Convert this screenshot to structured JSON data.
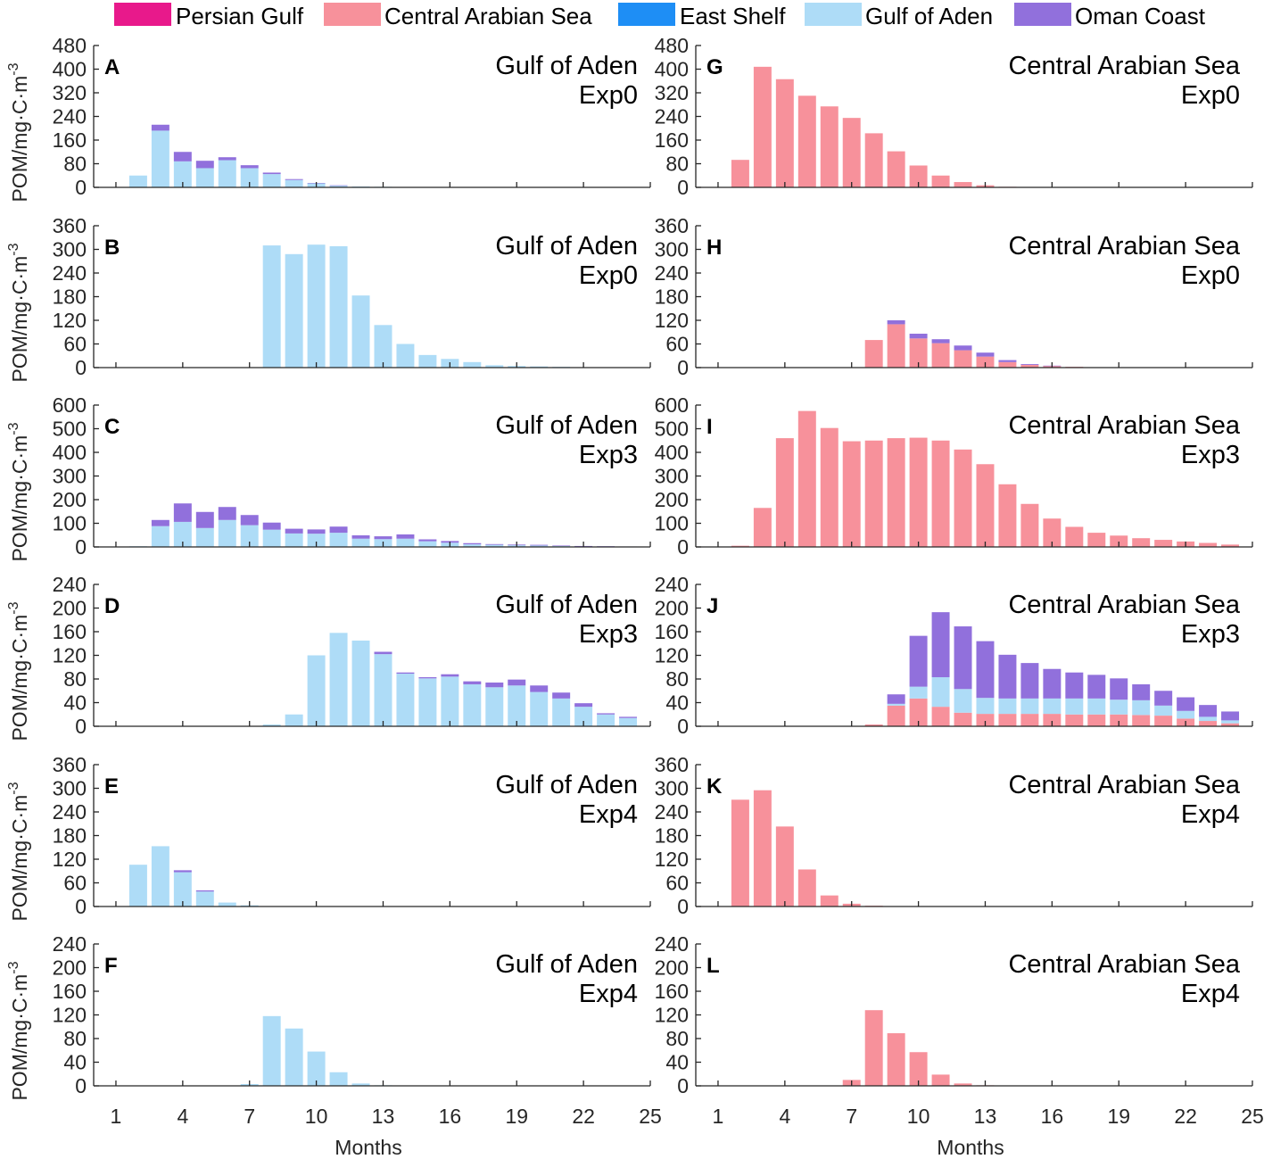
{
  "chart_data": {
    "type": "bar",
    "stacked": true,
    "legend": [
      {
        "name": "Persian Gulf",
        "color": "#e8198b"
      },
      {
        "name": "Central Arabian Sea",
        "color": "#f7919b"
      },
      {
        "name": "East Shelf",
        "color": "#1e8ef5"
      },
      {
        "name": "Gulf of Aden",
        "color": "#aedcf7"
      },
      {
        "name": "Oman Coast",
        "color": "#9170dc"
      }
    ],
    "xlabel": "Months",
    "ylabel_main": "POM/mg·C·m",
    "ylabel_sup": "-3",
    "x_ticks": [
      1,
      4,
      7,
      10,
      13,
      16,
      19,
      22,
      25
    ],
    "xlim": [
      0,
      25
    ],
    "panels": [
      {
        "letter": "A",
        "title1": "Gulf of Aden",
        "title2": "Exp0",
        "ylim": [
          0,
          480
        ],
        "yticks": [
          0,
          80,
          160,
          240,
          320,
          400,
          480
        ],
        "months": [
          2,
          3,
          4,
          5,
          6,
          7,
          8,
          9,
          10,
          11,
          12,
          13,
          14,
          15
        ],
        "series": [
          {
            "name": "Gulf of Aden",
            "values": [
              40,
              192,
              88,
              65,
              92,
              65,
              45,
              25,
              14,
              6,
              3,
              2,
              1,
              1
            ]
          },
          {
            "name": "Oman Coast",
            "values": [
              0,
              20,
              32,
              25,
              10,
              10,
              5,
              3,
              1,
              1,
              0,
              0,
              0,
              0
            ]
          }
        ]
      },
      {
        "letter": "B",
        "title1": "Gulf of Aden",
        "title2": "Exp0",
        "ylim": [
          0,
          360
        ],
        "yticks": [
          0,
          60,
          120,
          180,
          240,
          300,
          360
        ],
        "months": [
          8,
          9,
          10,
          11,
          12,
          13,
          14,
          15,
          16,
          17,
          18,
          19,
          20,
          21,
          22,
          23,
          24
        ],
        "series": [
          {
            "name": "Gulf of Aden",
            "values": [
              310,
              288,
              312,
              308,
              183,
              108,
              60,
              32,
              22,
              14,
              6,
              4,
              3,
              2,
              1,
              1,
              1
            ]
          }
        ]
      },
      {
        "letter": "C",
        "title1": "Gulf of Aden",
        "title2": "Exp3",
        "ylim": [
          0,
          600
        ],
        "yticks": [
          0,
          100,
          200,
          300,
          400,
          500,
          600
        ],
        "months": [
          2,
          3,
          4,
          5,
          6,
          7,
          8,
          9,
          10,
          11,
          12,
          13,
          14,
          15,
          16,
          17,
          18,
          19,
          20,
          21,
          22,
          23,
          24
        ],
        "series": [
          {
            "name": "Gulf of Aden",
            "values": [
              3,
              88,
              106,
              80,
              114,
              92,
              73,
              57,
              56,
              60,
              35,
              33,
              35,
              24,
              18,
              11,
              9,
              7,
              6,
              4,
              3,
              2,
              1
            ]
          },
          {
            "name": "Oman Coast",
            "values": [
              0,
              26,
              78,
              68,
              55,
              43,
              30,
              20,
              18,
              26,
              14,
              12,
              18,
              8,
              7,
              5,
              3,
              3,
              3,
              2,
              1,
              1,
              1
            ]
          }
        ]
      },
      {
        "letter": "D",
        "title1": "Gulf of Aden",
        "title2": "Exp3",
        "ylim": [
          0,
          240
        ],
        "yticks": [
          0,
          40,
          80,
          120,
          160,
          200,
          240
        ],
        "months": [
          8,
          9,
          10,
          11,
          12,
          13,
          14,
          15,
          16,
          17,
          18,
          19,
          20,
          21,
          22,
          23,
          24
        ],
        "series": [
          {
            "name": "Gulf of Aden",
            "values": [
              3,
              20,
              120,
              158,
              145,
              122,
              89,
              81,
              84,
              71,
              66,
              69,
              58,
              47,
              33,
              20,
              14
            ]
          },
          {
            "name": "Oman Coast",
            "values": [
              0,
              0,
              0,
              0,
              0,
              4,
              2,
              2,
              4,
              5,
              8,
              10,
              11,
              10,
              6,
              2,
              2
            ]
          }
        ]
      },
      {
        "letter": "E",
        "title1": "Gulf of Aden",
        "title2": "Exp4",
        "ylim": [
          0,
          360
        ],
        "yticks": [
          0,
          60,
          120,
          180,
          240,
          300,
          360
        ],
        "months": [
          2,
          3,
          4,
          5,
          6,
          7,
          8
        ],
        "series": [
          {
            "name": "Gulf of Aden",
            "values": [
              106,
              153,
              87,
              38,
              10,
              3,
              1
            ]
          },
          {
            "name": "Oman Coast",
            "values": [
              0,
              0,
              5,
              3,
              0,
              0,
              0
            ]
          }
        ]
      },
      {
        "letter": "F",
        "title1": "Gulf of Aden",
        "title2": "Exp4",
        "ylim": [
          0,
          240
        ],
        "yticks": [
          0,
          40,
          80,
          120,
          160,
          200,
          240
        ],
        "months": [
          7,
          8,
          9,
          10,
          11,
          12,
          13
        ],
        "series": [
          {
            "name": "Gulf of Aden",
            "values": [
              3,
              118,
              97,
              58,
              23,
              4,
              1
            ]
          }
        ]
      },
      {
        "letter": "G",
        "title1": "Central Arabian Sea",
        "title2": "Exp0",
        "ylim": [
          0,
          480
        ],
        "yticks": [
          0,
          80,
          160,
          240,
          320,
          400,
          480
        ],
        "months": [
          2,
          3,
          4,
          5,
          6,
          7,
          8,
          9,
          10,
          11,
          12,
          13,
          14,
          15
        ],
        "series": [
          {
            "name": "Central Arabian Sea",
            "values": [
              93,
              408,
              366,
              310,
              274,
              235,
              183,
              122,
              74,
              40,
              18,
              7,
              2,
              1
            ]
          }
        ]
      },
      {
        "letter": "H",
        "title1": "Central Arabian Sea",
        "title2": "Exp0",
        "ylim": [
          0,
          360
        ],
        "yticks": [
          0,
          60,
          120,
          180,
          240,
          300,
          360
        ],
        "months": [
          8,
          9,
          10,
          11,
          12,
          13,
          14,
          15,
          16,
          17,
          18,
          19,
          20
        ],
        "series": [
          {
            "name": "Central Arabian Sea",
            "values": [
              70,
              110,
              74,
              62,
              44,
              28,
              14,
              7,
              4,
              2,
              1,
              1,
              1
            ]
          },
          {
            "name": "Oman Coast",
            "values": [
              0,
              10,
              12,
              10,
              12,
              10,
              5,
              2,
              1,
              0,
              0,
              0,
              0
            ]
          }
        ]
      },
      {
        "letter": "I",
        "title1": "Central Arabian Sea",
        "title2": "Exp3",
        "ylim": [
          0,
          600
        ],
        "yticks": [
          0,
          100,
          200,
          300,
          400,
          500,
          600
        ],
        "months": [
          2,
          3,
          4,
          5,
          6,
          7,
          8,
          9,
          10,
          11,
          12,
          13,
          14,
          15,
          16,
          17,
          18,
          19,
          20,
          21,
          22,
          23,
          24
        ],
        "series": [
          {
            "name": "Central Arabian Sea",
            "values": [
              5,
              165,
              460,
              575,
              503,
              447,
              450,
              460,
              462,
              450,
              412,
              350,
              265,
              182,
              120,
              85,
              60,
              48,
              37,
              30,
              23,
              17,
              10
            ]
          }
        ]
      },
      {
        "letter": "J",
        "title1": "Central Arabian Sea",
        "title2": "Exp3",
        "ylim": [
          0,
          240
        ],
        "yticks": [
          0,
          40,
          80,
          120,
          160,
          200,
          240
        ],
        "months": [
          8,
          9,
          10,
          11,
          12,
          13,
          14,
          15,
          16,
          17,
          18,
          19,
          20,
          21,
          22,
          23,
          24
        ],
        "series": [
          {
            "name": "Central Arabian Sea",
            "values": [
              3,
              35,
              47,
              33,
              23,
              21,
              21,
              21,
              21,
              20,
              20,
              20,
              19,
              18,
              13,
              9,
              5
            ]
          },
          {
            "name": "Gulf of Aden",
            "values": [
              0,
              3,
              20,
              50,
              40,
              27,
              26,
              26,
              26,
              27,
              27,
              25,
              25,
              17,
              13,
              7,
              5
            ]
          },
          {
            "name": "Oman Coast",
            "values": [
              0,
              16,
              86,
              110,
              106,
              96,
              74,
              60,
              50,
              44,
              40,
              36,
              27,
              25,
              23,
              20,
              15
            ]
          }
        ]
      },
      {
        "letter": "K",
        "title1": "Central Arabian Sea",
        "title2": "Exp4",
        "ylim": [
          0,
          360
        ],
        "yticks": [
          0,
          60,
          120,
          180,
          240,
          300,
          360
        ],
        "months": [
          2,
          3,
          4,
          5,
          6,
          7,
          8
        ],
        "series": [
          {
            "name": "Central Arabian Sea",
            "values": [
              271,
              295,
              203,
              94,
              28,
              7,
              2
            ]
          }
        ]
      },
      {
        "letter": "L",
        "title1": "Central Arabian Sea",
        "title2": "Exp4",
        "ylim": [
          0,
          240
        ],
        "yticks": [
          0,
          40,
          80,
          120,
          160,
          200,
          240
        ],
        "months": [
          7,
          8,
          9,
          10,
          11,
          12,
          13
        ],
        "series": [
          {
            "name": "Central Arabian Sea",
            "values": [
              10,
              128,
              89,
              57,
              19,
              4,
              1
            ]
          }
        ]
      }
    ]
  }
}
